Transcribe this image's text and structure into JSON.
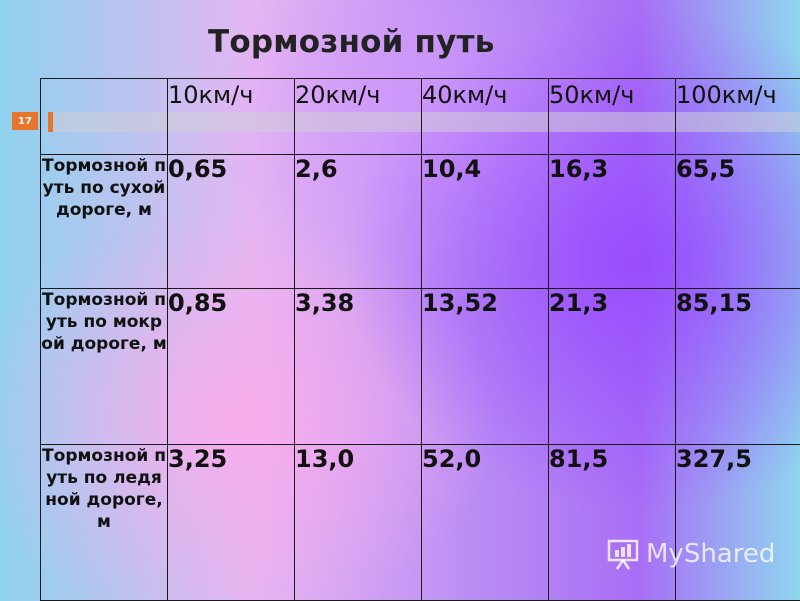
{
  "title": "Тормозной путь",
  "slide_number": "17",
  "table": {
    "speeds": [
      "10км/ч",
      "20км/ч",
      "40км/ч",
      "50км/ч",
      "100км/ч"
    ],
    "rows": [
      {
        "label": "Тормозной путь по сухой дороге, м",
        "values": [
          "0,65",
          "2,6",
          "10,4",
          "16,3",
          "65,5"
        ]
      },
      {
        "label": "Тормозной путь по мокрой дороге, м",
        "values": [
          "0,85",
          "3,38",
          "13,52",
          "21,3",
          "85,15"
        ]
      },
      {
        "label": "Тормозной путь по ледяной дороге, м",
        "values": [
          "3,25",
          "13,0",
          "52,0",
          "81,5",
          "327,5"
        ]
      }
    ]
  },
  "watermark": {
    "text": "MyShared",
    "icon": "presentation-board-icon"
  }
}
